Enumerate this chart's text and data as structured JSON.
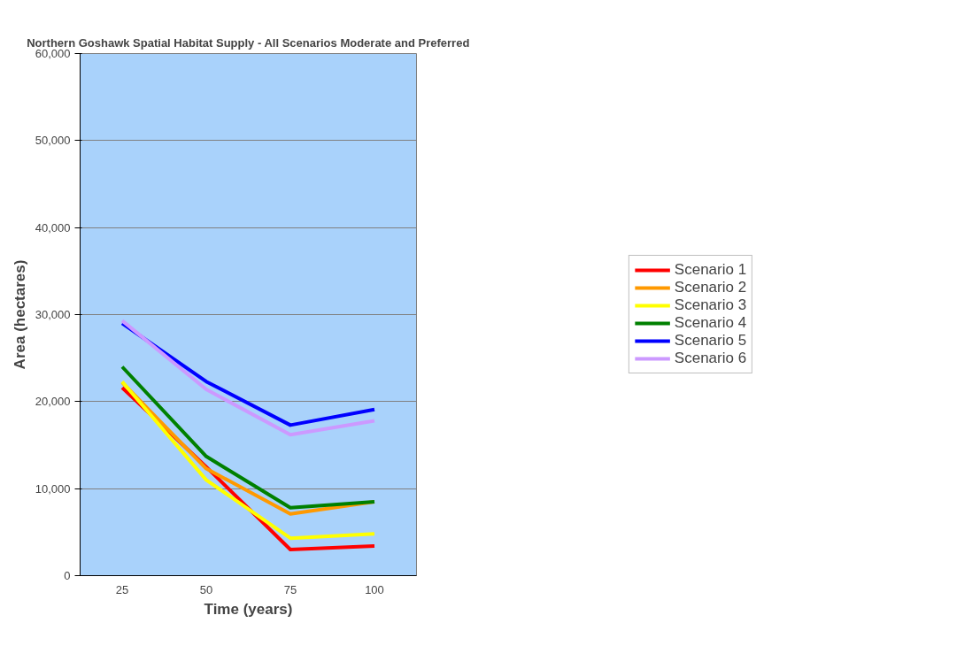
{
  "chart_data": {
    "type": "line",
    "title": "Northern Goshawk Spatial Habitat Supply - All Scenarios Moderate and Preferred",
    "xlabel": "Time (years)",
    "ylabel": "Area (hectares)",
    "categories": [
      "25",
      "50",
      "75",
      "100"
    ],
    "ylim": [
      0,
      60000
    ],
    "yticks": [
      {
        "value": 0,
        "label": "0"
      },
      {
        "value": 10000,
        "label": "10,000"
      },
      {
        "value": 20000,
        "label": "20,000"
      },
      {
        "value": 30000,
        "label": "30,000"
      },
      {
        "value": 40000,
        "label": "40,000"
      },
      {
        "value": 50000,
        "label": "50,000"
      },
      {
        "value": 60000,
        "label": "60,000"
      }
    ],
    "grid": "y",
    "legend": "right",
    "marker": "none",
    "line_style": "solid",
    "series": [
      {
        "name": "Scenario 1",
        "color": "#ff0000",
        "values": [
          21600,
          12500,
          3000,
          3400
        ]
      },
      {
        "name": "Scenario 2",
        "color": "#ff9900",
        "values": [
          22200,
          12300,
          7100,
          8500
        ]
      },
      {
        "name": "Scenario 3",
        "color": "#ffff00",
        "values": [
          22300,
          11000,
          4300,
          4800
        ]
      },
      {
        "name": "Scenario 4",
        "color": "#008000",
        "values": [
          24000,
          13700,
          7800,
          8500
        ]
      },
      {
        "name": "Scenario 5",
        "color": "#0000ff",
        "values": [
          29000,
          22300,
          17300,
          19100
        ]
      },
      {
        "name": "Scenario 6",
        "color": "#cc99ff",
        "values": [
          29300,
          21400,
          16200,
          17800
        ]
      }
    ]
  }
}
